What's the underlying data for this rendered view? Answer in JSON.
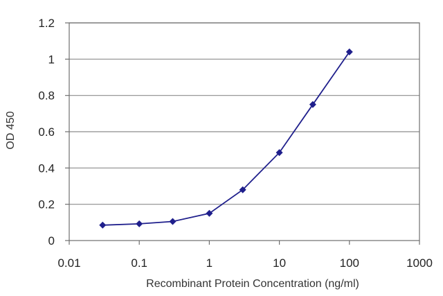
{
  "chart_data": {
    "type": "line",
    "title": "",
    "xlabel": "Recombinant Protein Concentration (ng/ml)",
    "ylabel": "OD 450",
    "x_scale": "log",
    "xlim": [
      0.01,
      1000
    ],
    "ylim": [
      0,
      1.2
    ],
    "x_ticks": [
      0.01,
      0.1,
      1,
      10,
      100,
      1000
    ],
    "x_tick_labels": [
      "0.01",
      "0.1",
      "1",
      "10",
      "100",
      "1000"
    ],
    "y_ticks": [
      0,
      0.2,
      0.4,
      0.6,
      0.8,
      1,
      1.2
    ],
    "y_tick_labels": [
      "0",
      "0.2",
      "0.4",
      "0.6",
      "0.8",
      "1",
      "1.2"
    ],
    "grid": "horizontal",
    "legend": "none",
    "series": [
      {
        "x": [
          0.03,
          0.1,
          0.3,
          1,
          3,
          10,
          30,
          100
        ],
        "y": [
          0.085,
          0.092,
          0.105,
          0.15,
          0.28,
          0.485,
          0.75,
          1.04
        ],
        "color": "#1f1f8c",
        "marker": "diamond"
      }
    ],
    "colors": {
      "line": "#1f1f8c",
      "grid": "#8c8c8c",
      "axis": "#6e6e6e"
    }
  }
}
